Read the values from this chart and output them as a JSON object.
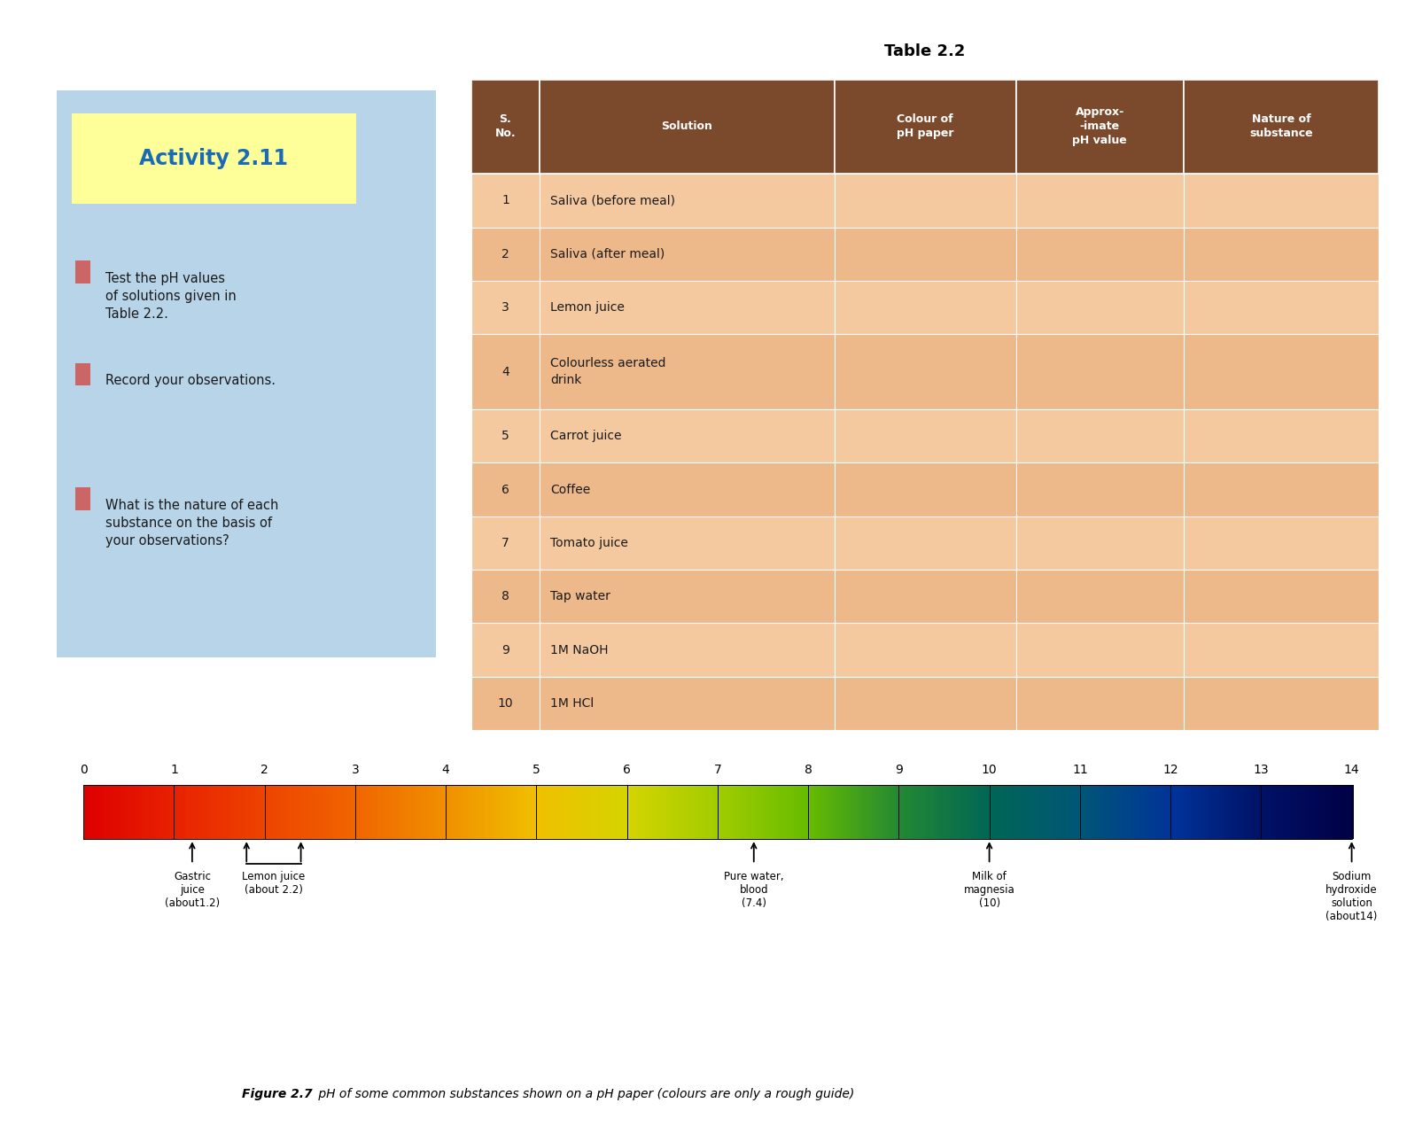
{
  "title": "Table 2.2",
  "activity_title": "Activity 2.11",
  "activity_bg": "#b8d4e8",
  "activity_title_bg": "#ffff99",
  "activity_title_color": "#1a6bb5",
  "activity_bullet_color": "#cc6666",
  "activity_text_color": "#1a1a1a",
  "activity_bullets": [
    "Test the pH values\nof solutions given in\nTable 2.2.",
    "Record your observations.",
    "What is the nature of each\nsubstance on the basis of\nyour observations?"
  ],
  "table_header_bg": "#7b4a2d",
  "table_header_text": "#ffffff",
  "table_row_bg_odd": "#f5c9a0",
  "table_row_bg_even": "#edb88a",
  "table_col_headers": [
    "S.\nNo.",
    "Solution",
    "Colour of\npH paper",
    "Approx-\n-imate\npH value",
    "Nature of\nsubstance"
  ],
  "table_rows": [
    [
      "1",
      "Saliva (before meal)",
      "",
      "",
      ""
    ],
    [
      "2",
      "Saliva (after meal)",
      "",
      "",
      ""
    ],
    [
      "3",
      "Lemon juice",
      "",
      "",
      ""
    ],
    [
      "4",
      "Colourless aerated\ndrink",
      "",
      "",
      ""
    ],
    [
      "5",
      "Carrot juice",
      "",
      "",
      ""
    ],
    [
      "6",
      "Coffee",
      "",
      "",
      ""
    ],
    [
      "7",
      "Tomato juice",
      "",
      "",
      ""
    ],
    [
      "8",
      "Tap water",
      "",
      "",
      ""
    ],
    [
      "9",
      "1M NaOH",
      "",
      "",
      ""
    ],
    [
      "10",
      "1M HCl",
      "",
      "",
      ""
    ]
  ],
  "ph_colors": [
    "#dd0000",
    "#e82200",
    "#ee4400",
    "#f06600",
    "#f09000",
    "#f0c000",
    "#d4d400",
    "#a0cc00",
    "#66bb00",
    "#228833",
    "#006655",
    "#005577",
    "#003399",
    "#001166",
    "#000044"
  ],
  "ph_ticks": [
    0,
    1,
    2,
    3,
    4,
    5,
    6,
    7,
    8,
    9,
    10,
    11,
    12,
    13,
    14
  ],
  "figure_caption_bold": "Figure 2.7",
  "figure_caption_italic": " pH of some common substances shown on a pH paper (colours are only a rough guide)",
  "background_color": "#ffffff"
}
